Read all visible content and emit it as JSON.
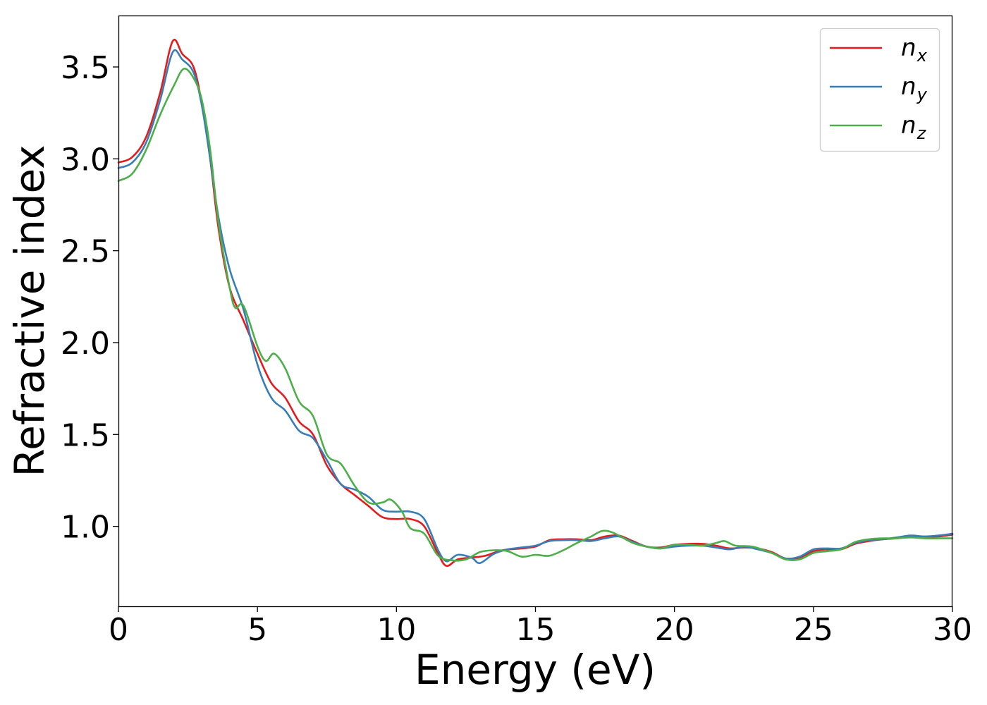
{
  "chart_data": {
    "type": "line",
    "xlabel": "Energy (eV)",
    "ylabel": "Refractive index",
    "xlim": [
      0,
      30
    ],
    "ylim": [
      0.565,
      3.78
    ],
    "xticks": [
      0,
      5,
      10,
      15,
      20,
      25,
      30
    ],
    "xtick_labels": [
      "0",
      "5",
      "10",
      "15",
      "20",
      "25",
      "30"
    ],
    "yticks": [
      1.0,
      1.5,
      2.0,
      2.5,
      3.0,
      3.5
    ],
    "ytick_labels": [
      "1.0",
      "1.5",
      "2.0",
      "2.5",
      "3.0",
      "3.5"
    ],
    "grid": false,
    "legend_position": "top-right",
    "series": [
      {
        "name": "n_x",
        "label_main": "n",
        "label_sub": "x",
        "color": "#e41a1c",
        "points": [
          [
            0,
            2.98
          ],
          [
            0.5,
            3.01
          ],
          [
            1.0,
            3.12
          ],
          [
            1.5,
            3.36
          ],
          [
            1.95,
            3.64
          ],
          [
            2.3,
            3.57
          ],
          [
            2.7,
            3.5
          ],
          [
            3.0,
            3.3
          ],
          [
            3.3,
            3.0
          ],
          [
            3.6,
            2.62
          ],
          [
            4.0,
            2.3
          ],
          [
            4.5,
            2.12
          ],
          [
            5.0,
            1.94
          ],
          [
            5.5,
            1.78
          ],
          [
            6.0,
            1.7
          ],
          [
            6.5,
            1.57
          ],
          [
            7.0,
            1.5
          ],
          [
            7.5,
            1.33
          ],
          [
            8.0,
            1.23
          ],
          [
            8.5,
            1.17
          ],
          [
            9.0,
            1.11
          ],
          [
            9.5,
            1.05
          ],
          [
            10.0,
            1.04
          ],
          [
            10.5,
            1.04
          ],
          [
            11.0,
            1.0
          ],
          [
            11.5,
            0.85
          ],
          [
            11.8,
            0.785
          ],
          [
            12.2,
            0.82
          ],
          [
            12.7,
            0.83
          ],
          [
            13.2,
            0.84
          ],
          [
            13.8,
            0.87
          ],
          [
            14.5,
            0.88
          ],
          [
            15.0,
            0.89
          ],
          [
            15.5,
            0.925
          ],
          [
            16.0,
            0.93
          ],
          [
            16.5,
            0.93
          ],
          [
            17.0,
            0.925
          ],
          [
            17.5,
            0.945
          ],
          [
            18.0,
            0.95
          ],
          [
            18.5,
            0.92
          ],
          [
            19.0,
            0.89
          ],
          [
            19.5,
            0.885
          ],
          [
            20.0,
            0.9
          ],
          [
            20.5,
            0.905
          ],
          [
            21.0,
            0.905
          ],
          [
            21.5,
            0.895
          ],
          [
            22.0,
            0.88
          ],
          [
            22.5,
            0.885
          ],
          [
            23.0,
            0.88
          ],
          [
            23.5,
            0.86
          ],
          [
            24.0,
            0.825
          ],
          [
            24.5,
            0.83
          ],
          [
            25.0,
            0.865
          ],
          [
            25.5,
            0.875
          ],
          [
            26.0,
            0.875
          ],
          [
            26.5,
            0.905
          ],
          [
            27.0,
            0.92
          ],
          [
            27.5,
            0.93
          ],
          [
            28.0,
            0.935
          ],
          [
            28.5,
            0.945
          ],
          [
            29.0,
            0.945
          ],
          [
            29.5,
            0.945
          ],
          [
            30.0,
            0.955
          ]
        ]
      },
      {
        "name": "n_y",
        "label_main": "n",
        "label_sub": "y",
        "color": "#377eb8",
        "points": [
          [
            0,
            2.95
          ],
          [
            0.5,
            2.98
          ],
          [
            1.0,
            3.09
          ],
          [
            1.5,
            3.32
          ],
          [
            1.95,
            3.58
          ],
          [
            2.3,
            3.54
          ],
          [
            2.7,
            3.47
          ],
          [
            3.0,
            3.29
          ],
          [
            3.3,
            3.0
          ],
          [
            3.6,
            2.68
          ],
          [
            4.0,
            2.4
          ],
          [
            4.5,
            2.18
          ],
          [
            5.0,
            1.88
          ],
          [
            5.5,
            1.7
          ],
          [
            6.0,
            1.63
          ],
          [
            6.5,
            1.52
          ],
          [
            7.0,
            1.48
          ],
          [
            7.5,
            1.36
          ],
          [
            8.0,
            1.23
          ],
          [
            8.5,
            1.2
          ],
          [
            9.0,
            1.16
          ],
          [
            9.5,
            1.09
          ],
          [
            10.0,
            1.08
          ],
          [
            10.5,
            1.08
          ],
          [
            11.0,
            1.04
          ],
          [
            11.5,
            0.87
          ],
          [
            11.8,
            0.81
          ],
          [
            12.2,
            0.845
          ],
          [
            12.7,
            0.83
          ],
          [
            13.0,
            0.8
          ],
          [
            13.5,
            0.85
          ],
          [
            14.0,
            0.875
          ],
          [
            14.5,
            0.885
          ],
          [
            15.0,
            0.895
          ],
          [
            15.5,
            0.92
          ],
          [
            16.0,
            0.925
          ],
          [
            16.5,
            0.925
          ],
          [
            17.0,
            0.92
          ],
          [
            17.5,
            0.935
          ],
          [
            18.0,
            0.945
          ],
          [
            18.5,
            0.915
          ],
          [
            19.0,
            0.89
          ],
          [
            19.5,
            0.88
          ],
          [
            20.0,
            0.89
          ],
          [
            20.5,
            0.895
          ],
          [
            21.0,
            0.895
          ],
          [
            21.5,
            0.885
          ],
          [
            22.0,
            0.875
          ],
          [
            22.5,
            0.89
          ],
          [
            23.0,
            0.875
          ],
          [
            23.5,
            0.855
          ],
          [
            24.0,
            0.825
          ],
          [
            24.5,
            0.835
          ],
          [
            25.0,
            0.875
          ],
          [
            25.5,
            0.88
          ],
          [
            26.0,
            0.88
          ],
          [
            26.5,
            0.91
          ],
          [
            27.0,
            0.925
          ],
          [
            27.5,
            0.93
          ],
          [
            28.0,
            0.94
          ],
          [
            28.5,
            0.95
          ],
          [
            29.0,
            0.945
          ],
          [
            29.5,
            0.95
          ],
          [
            30.0,
            0.96
          ]
        ]
      },
      {
        "name": "n_z",
        "label_main": "n",
        "label_sub": "z",
        "color": "#4daf4a",
        "points": [
          [
            0,
            2.88
          ],
          [
            0.5,
            2.92
          ],
          [
            1.0,
            3.05
          ],
          [
            1.5,
            3.24
          ],
          [
            2.0,
            3.4
          ],
          [
            2.35,
            3.49
          ],
          [
            2.7,
            3.44
          ],
          [
            3.0,
            3.32
          ],
          [
            3.3,
            3.05
          ],
          [
            3.6,
            2.65
          ],
          [
            4.0,
            2.3
          ],
          [
            4.2,
            2.19
          ],
          [
            4.5,
            2.2
          ],
          [
            5.0,
            1.98
          ],
          [
            5.3,
            1.9
          ],
          [
            5.6,
            1.94
          ],
          [
            6.0,
            1.86
          ],
          [
            6.5,
            1.68
          ],
          [
            7.0,
            1.6
          ],
          [
            7.5,
            1.39
          ],
          [
            8.0,
            1.34
          ],
          [
            8.5,
            1.22
          ],
          [
            9.0,
            1.13
          ],
          [
            9.5,
            1.13
          ],
          [
            9.8,
            1.145
          ],
          [
            10.2,
            1.08
          ],
          [
            10.5,
            0.99
          ],
          [
            11.0,
            0.96
          ],
          [
            11.5,
            0.84
          ],
          [
            12.0,
            0.815
          ],
          [
            12.5,
            0.82
          ],
          [
            13.0,
            0.86
          ],
          [
            13.5,
            0.87
          ],
          [
            14.0,
            0.865
          ],
          [
            14.5,
            0.835
          ],
          [
            15.0,
            0.845
          ],
          [
            15.5,
            0.84
          ],
          [
            16.0,
            0.87
          ],
          [
            16.5,
            0.91
          ],
          [
            17.0,
            0.945
          ],
          [
            17.4,
            0.975
          ],
          [
            17.8,
            0.965
          ],
          [
            18.5,
            0.91
          ],
          [
            19.0,
            0.89
          ],
          [
            19.5,
            0.88
          ],
          [
            20.0,
            0.9
          ],
          [
            20.5,
            0.9
          ],
          [
            21.0,
            0.895
          ],
          [
            21.5,
            0.91
          ],
          [
            21.8,
            0.92
          ],
          [
            22.2,
            0.895
          ],
          [
            22.8,
            0.89
          ],
          [
            23.5,
            0.855
          ],
          [
            24.0,
            0.82
          ],
          [
            24.5,
            0.82
          ],
          [
            25.0,
            0.855
          ],
          [
            25.5,
            0.865
          ],
          [
            26.0,
            0.875
          ],
          [
            26.5,
            0.915
          ],
          [
            27.0,
            0.93
          ],
          [
            27.5,
            0.935
          ],
          [
            28.0,
            0.935
          ],
          [
            28.5,
            0.94
          ],
          [
            29.0,
            0.935
          ],
          [
            29.5,
            0.935
          ],
          [
            30.0,
            0.935
          ]
        ]
      }
    ]
  }
}
